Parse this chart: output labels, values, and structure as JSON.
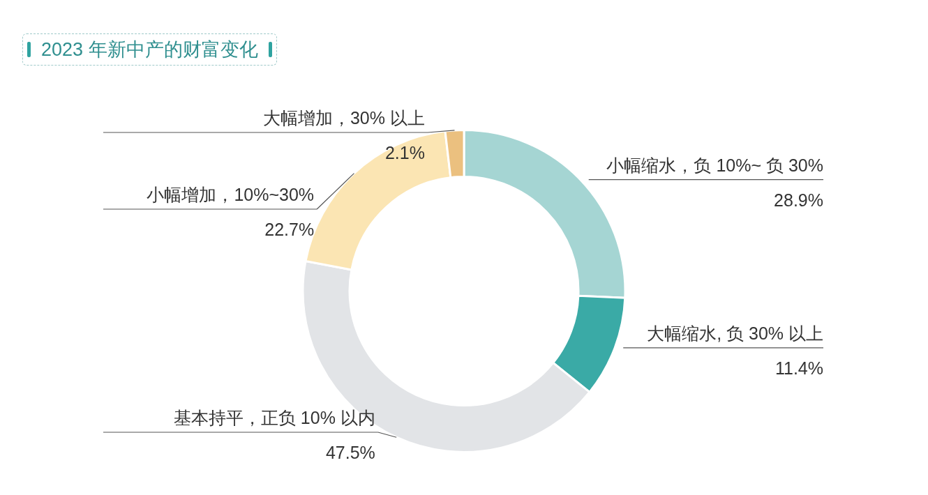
{
  "chart_data": {
    "type": "donut",
    "title": "2023 年新中产的财富变化",
    "categories": [
      "小幅缩水，负 10%~ 负 30%",
      "大幅缩水, 负 30% 以上",
      "基本持平，正负 10% 以内",
      "小幅增加，10%~30%",
      "大幅增加，30% 以上"
    ],
    "values": [
      28.9,
      11.4,
      47.5,
      22.7,
      2.1
    ],
    "value_labels": [
      "28.9%",
      "11.4%",
      "47.5%",
      "22.7%",
      "2.1%"
    ],
    "colors": [
      "#a5d5d3",
      "#3aaaa6",
      "#e2e4e7",
      "#fbe5b3",
      "#ebc07f"
    ],
    "legend": false
  }
}
